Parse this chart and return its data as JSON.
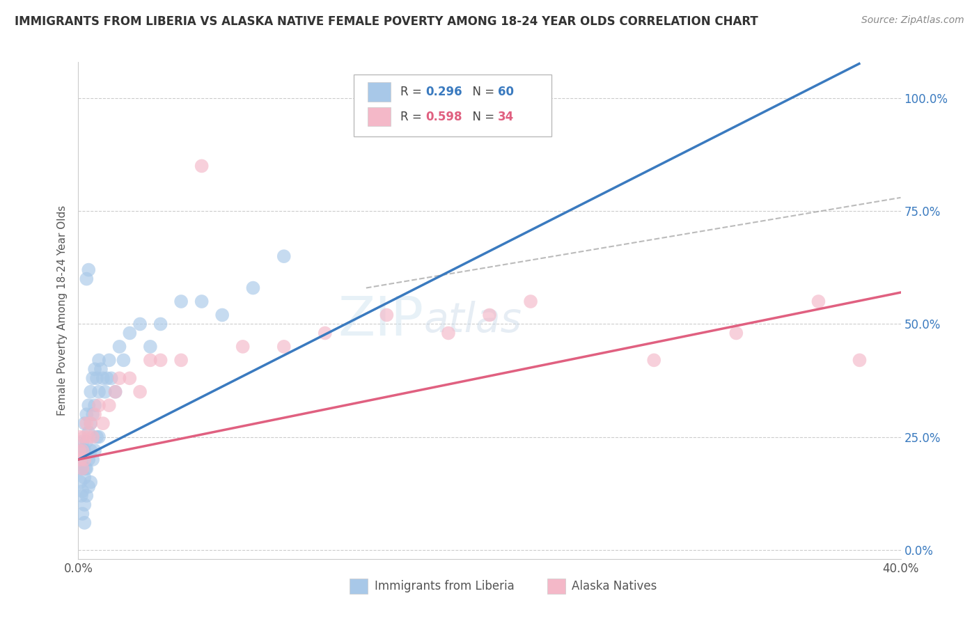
{
  "title": "IMMIGRANTS FROM LIBERIA VS ALASKA NATIVE FEMALE POVERTY AMONG 18-24 YEAR OLDS CORRELATION CHART",
  "source": "Source: ZipAtlas.com",
  "ylabel": "Female Poverty Among 18-24 Year Olds",
  "ylabel_ticks": [
    "0.0%",
    "25.0%",
    "50.0%",
    "75.0%",
    "100.0%"
  ],
  "ylabel_values": [
    0.0,
    0.25,
    0.5,
    0.75,
    1.0
  ],
  "xlim": [
    0.0,
    0.4
  ],
  "ylim": [
    -0.02,
    1.08
  ],
  "legend_r1": "0.296",
  "legend_n1": "60",
  "legend_r2": "0.598",
  "legend_n2": "34",
  "color_blue": "#a8c8e8",
  "color_pink": "#f4b8c8",
  "color_blue_line": "#3a7abf",
  "color_pink_line": "#e06080",
  "color_grey_line": "#aaaaaa",
  "color_blue_text": "#3a7abf",
  "color_pink_text": "#e06080",
  "watermark": "ZIPatlas",
  "blue_scatter_x": [
    0.0005,
    0.001,
    0.001,
    0.001,
    0.0015,
    0.0015,
    0.002,
    0.002,
    0.002,
    0.002,
    0.0025,
    0.003,
    0.003,
    0.003,
    0.003,
    0.003,
    0.0035,
    0.004,
    0.004,
    0.004,
    0.004,
    0.004,
    0.005,
    0.005,
    0.005,
    0.005,
    0.005,
    0.006,
    0.006,
    0.006,
    0.006,
    0.007,
    0.007,
    0.007,
    0.008,
    0.008,
    0.008,
    0.009,
    0.009,
    0.01,
    0.01,
    0.01,
    0.011,
    0.012,
    0.013,
    0.014,
    0.015,
    0.016,
    0.018,
    0.02,
    0.022,
    0.025,
    0.03,
    0.035,
    0.04,
    0.05,
    0.06,
    0.07,
    0.085,
    0.1
  ],
  "blue_scatter_y": [
    0.2,
    0.18,
    0.22,
    0.15,
    0.2,
    0.12,
    0.24,
    0.18,
    0.13,
    0.08,
    0.22,
    0.28,
    0.22,
    0.16,
    0.1,
    0.06,
    0.18,
    0.3,
    0.24,
    0.18,
    0.12,
    0.6,
    0.32,
    0.26,
    0.2,
    0.14,
    0.62,
    0.35,
    0.28,
    0.22,
    0.15,
    0.38,
    0.3,
    0.2,
    0.4,
    0.32,
    0.22,
    0.38,
    0.25,
    0.42,
    0.35,
    0.25,
    0.4,
    0.38,
    0.35,
    0.38,
    0.42,
    0.38,
    0.35,
    0.45,
    0.42,
    0.48,
    0.5,
    0.45,
    0.5,
    0.55,
    0.55,
    0.52,
    0.58,
    0.65
  ],
  "pink_scatter_x": [
    0.0005,
    0.001,
    0.001,
    0.002,
    0.002,
    0.003,
    0.003,
    0.004,
    0.005,
    0.006,
    0.007,
    0.008,
    0.01,
    0.012,
    0.015,
    0.018,
    0.02,
    0.025,
    0.03,
    0.035,
    0.04,
    0.05,
    0.06,
    0.08,
    0.1,
    0.12,
    0.15,
    0.18,
    0.2,
    0.22,
    0.28,
    0.32,
    0.36,
    0.38
  ],
  "pink_scatter_y": [
    0.22,
    0.2,
    0.25,
    0.22,
    0.18,
    0.25,
    0.2,
    0.28,
    0.25,
    0.28,
    0.25,
    0.3,
    0.32,
    0.28,
    0.32,
    0.35,
    0.38,
    0.38,
    0.35,
    0.42,
    0.42,
    0.42,
    0.85,
    0.45,
    0.45,
    0.48,
    0.52,
    0.48,
    0.52,
    0.55,
    0.42,
    0.48,
    0.55,
    0.42
  ]
}
